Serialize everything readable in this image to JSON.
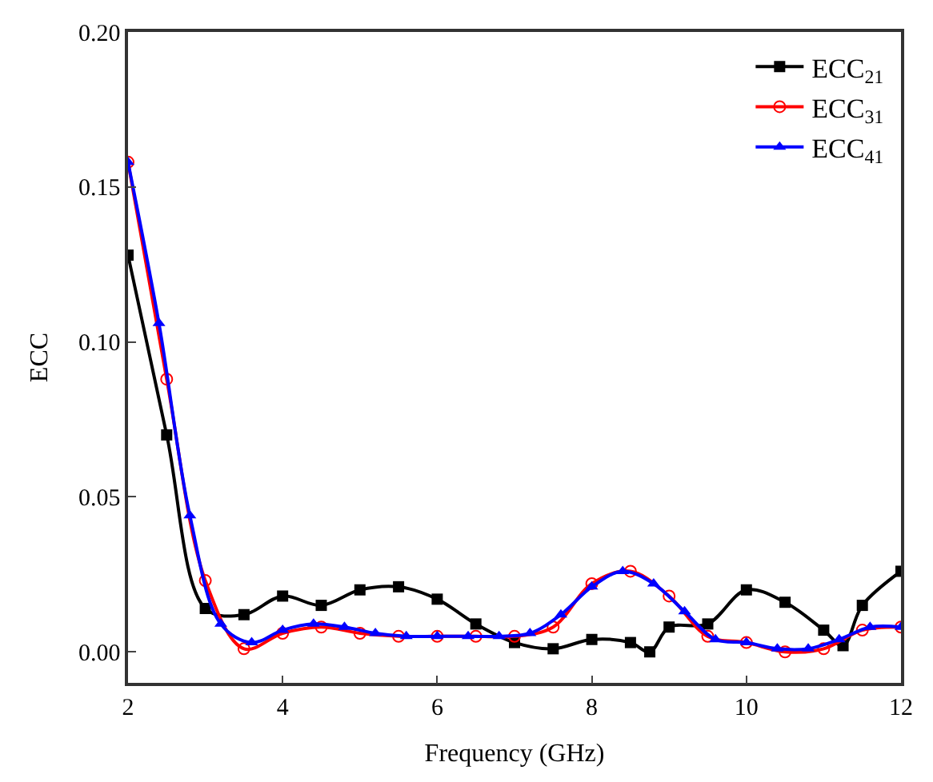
{
  "chart_data": {
    "type": "line",
    "xlabel": "Frequency (GHz)",
    "ylabel": "ECC",
    "xlim": [
      2,
      12
    ],
    "xticks": [
      2,
      4,
      6,
      8,
      10,
      12
    ],
    "ylim": [
      -0.01,
      0.2
    ],
    "yticks": [
      {
        "value": 0,
        "label": "0.00"
      },
      {
        "value": 0.05,
        "label": "0.05"
      },
      {
        "value": 0.1,
        "label": "0.10"
      },
      {
        "value": 0.15,
        "label": "0.15"
      },
      {
        "value": 0.2,
        "label": "0.20"
      }
    ],
    "legend": "top right",
    "series": [
      {
        "name": "ECC$_{21}$",
        "color": "#000000",
        "marker": "square",
        "x": [
          2,
          2.5,
          3,
          3.5,
          4,
          4.5,
          5,
          5.5,
          6,
          6.5,
          7,
          7.5,
          8,
          8.5,
          8.75,
          9,
          9.5,
          10,
          10.5,
          11,
          11.25,
          11.5,
          12
        ],
        "values": [
          0.128,
          0.07,
          0.014,
          0.012,
          0.018,
          0.015,
          0.02,
          0.021,
          0.017,
          0.009,
          0.003,
          0.001,
          0.004,
          0.003,
          0.0,
          0.008,
          0.009,
          0.02,
          0.016,
          0.007,
          0.002,
          0.015,
          0.026
        ]
      },
      {
        "name": "ECC$_{31}$",
        "color": "#ff0000",
        "marker": "circle-open",
        "x": [
          2,
          2.5,
          3,
          3.5,
          4,
          4.5,
          5,
          5.5,
          6,
          6.5,
          7,
          7.5,
          8,
          8.5,
          9,
          9.5,
          10,
          10.5,
          11,
          11.5,
          12
        ],
        "values": [
          0.158,
          0.088,
          0.023,
          0.001,
          0.006,
          0.008,
          0.006,
          0.005,
          0.005,
          0.005,
          0.005,
          0.008,
          0.022,
          0.026,
          0.018,
          0.005,
          0.003,
          0.0,
          0.001,
          0.007,
          0.008
        ]
      },
      {
        "name": "ECC$_{41}$",
        "color": "#0000ff",
        "marker": "triangle",
        "x": [
          2,
          2.4,
          2.8,
          3.2,
          3.6,
          4,
          4.4,
          4.8,
          5.2,
          5.6,
          6,
          6.4,
          6.8,
          7.2,
          7.6,
          8,
          8.4,
          8.8,
          9.2,
          9.6,
          10,
          10.4,
          10.8,
          11.2,
          11.6,
          12
        ],
        "values": [
          0.158,
          0.106,
          0.044,
          0.009,
          0.003,
          0.007,
          0.009,
          0.008,
          0.006,
          0.005,
          0.005,
          0.005,
          0.005,
          0.006,
          0.012,
          0.021,
          0.026,
          0.022,
          0.013,
          0.004,
          0.003,
          0.001,
          0.001,
          0.004,
          0.008,
          0.008
        ]
      }
    ]
  }
}
